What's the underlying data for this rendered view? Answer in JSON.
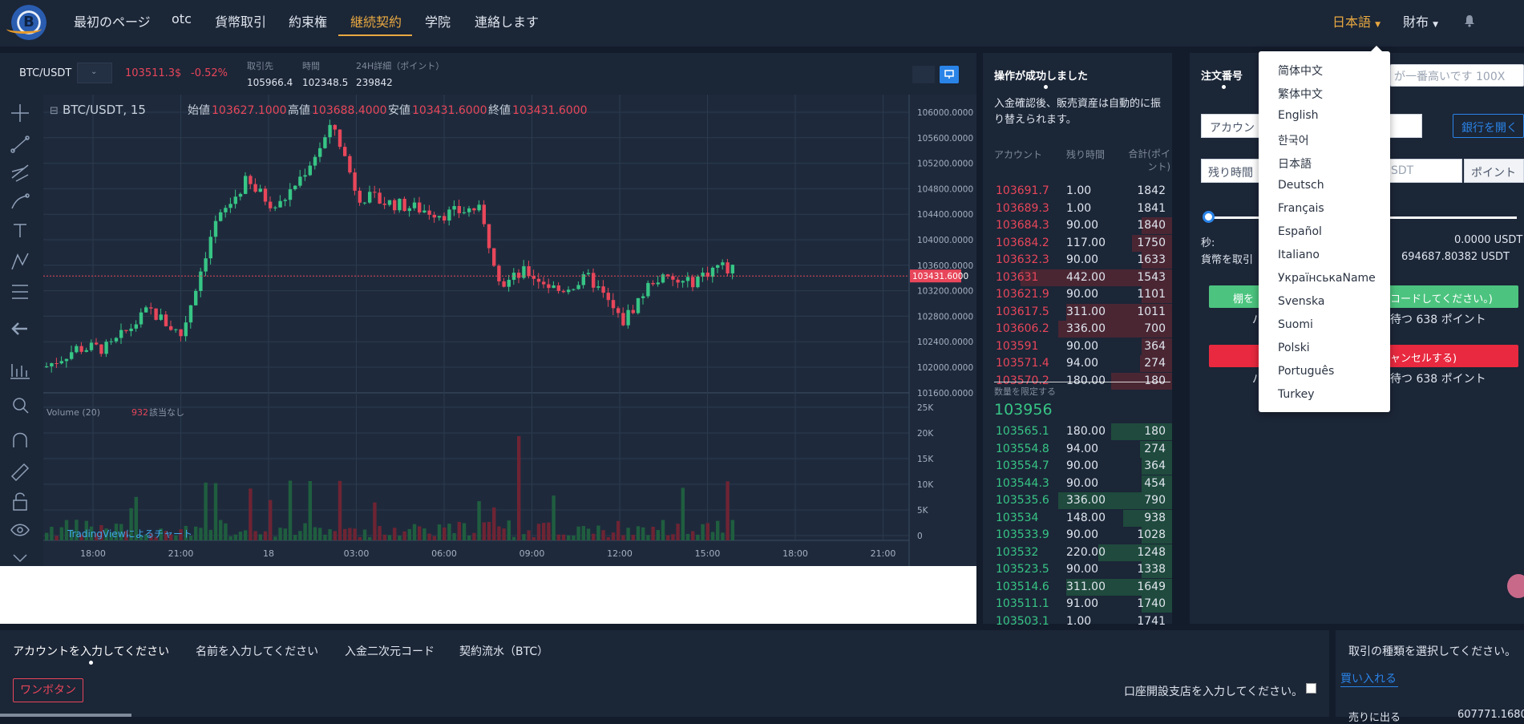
{
  "nav": {
    "items": [
      "最初のページ",
      "otc",
      "貨幣取引",
      "約束権",
      "継続契約",
      "学院",
      "連絡します"
    ],
    "language": "日本語",
    "assets": "財布"
  },
  "ticker": {
    "symbol": "BTC/USDT",
    "price": "103511.3$",
    "change": "-0.52%",
    "stats": [
      {
        "label": "取引先",
        "value": "105966.4"
      },
      {
        "label": "時間",
        "value": "102348.5"
      },
      {
        "label": "24H詳細（ポイント）",
        "value": "239842"
      }
    ]
  },
  "chart": {
    "legend_symbol": "BTC/USDT, 15",
    "ohlc": [
      {
        "label": "始値",
        "value": "103627.1000"
      },
      {
        "label": "高値",
        "value": "103688.4000"
      },
      {
        "label": "安値",
        "value": "103431.6000"
      },
      {
        "label": "終値",
        "value": "103431.6000"
      }
    ],
    "price_ticks": [
      "106000.0000",
      "105600.0000",
      "105200.0000",
      "104800.0000",
      "104400.0000",
      "104000.0000",
      "103600.0000",
      "103200.0000",
      "102800.0000",
      "102400.0000",
      "102000.0000",
      "101600.0000"
    ],
    "current_price_label": "103431.6000",
    "volume_label": "Volume (20)",
    "volume_value": "932",
    "volume_na": "該当なし",
    "volume_ticks": [
      "25K",
      "20K",
      "15K",
      "10K",
      "5K",
      "0"
    ],
    "time_ticks": [
      "18:00",
      "21:00",
      "18",
      "03:00",
      "06:00",
      "09:00",
      "12:00",
      "15:00",
      "18:00",
      "21:00"
    ],
    "watermark": "TradingViewによるチャート"
  },
  "orderbook": {
    "title": "操作が成功しました",
    "message": "入金確認後、販売資産は自動的に振り替えられます。",
    "headers": [
      "アカウント",
      "残り時間",
      "合計(ポイント)"
    ],
    "asks": [
      {
        "price": "103691.7",
        "amount": "1.00",
        "total": "1842",
        "depth": 0
      },
      {
        "price": "103689.3",
        "amount": "1.00",
        "total": "1841",
        "depth": 0
      },
      {
        "price": "103684.3",
        "amount": "90.00",
        "total": "1840",
        "depth": 0.16
      },
      {
        "price": "103684.2",
        "amount": "117.00",
        "total": "1750",
        "depth": 0.21
      },
      {
        "price": "103632.3",
        "amount": "90.00",
        "total": "1633",
        "depth": 0.16
      },
      {
        "price": "103631",
        "amount": "442.00",
        "total": "1543",
        "depth": 0.8
      },
      {
        "price": "103621.9",
        "amount": "90.00",
        "total": "1101",
        "depth": 0.16
      },
      {
        "price": "103617.5",
        "amount": "311.00",
        "total": "1011",
        "depth": 0.56
      },
      {
        "price": "103606.2",
        "amount": "336.00",
        "total": "700",
        "depth": 0.6
      },
      {
        "price": "103591",
        "amount": "90.00",
        "total": "364",
        "depth": 0.16
      },
      {
        "price": "103571.4",
        "amount": "94.00",
        "total": "274",
        "depth": 0.17
      },
      {
        "price": "103570.2",
        "amount": "180.00",
        "total": "180",
        "depth": 0.32
      }
    ],
    "mid_label": "数量を限定する",
    "mid_price": "103956",
    "bids": [
      {
        "price": "103565.1",
        "amount": "180.00",
        "total": "180",
        "depth": 0.32
      },
      {
        "price": "103554.8",
        "amount": "94.00",
        "total": "274",
        "depth": 0.17
      },
      {
        "price": "103554.7",
        "amount": "90.00",
        "total": "364",
        "depth": 0.16
      },
      {
        "price": "103544.3",
        "amount": "90.00",
        "total": "454",
        "depth": 0.16
      },
      {
        "price": "103535.6",
        "amount": "336.00",
        "total": "790",
        "depth": 0.6
      },
      {
        "price": "103534",
        "amount": "148.00",
        "total": "938",
        "depth": 0.26
      },
      {
        "price": "103533.9",
        "amount": "90.00",
        "total": "1028",
        "depth": 0.16
      },
      {
        "price": "103532",
        "amount": "220.00",
        "total": "1248",
        "depth": 0.39
      },
      {
        "price": "103523.5",
        "amount": "90.00",
        "total": "1338",
        "depth": 0.16
      },
      {
        "price": "103514.6",
        "amount": "311.00",
        "total": "1649",
        "depth": 0.56
      },
      {
        "price": "103511.1",
        "amount": "91.00",
        "total": "1740",
        "depth": 0.16
      },
      {
        "price": "103503.1",
        "amount": "1.00",
        "total": "1741",
        "depth": 0
      }
    ]
  },
  "order_form": {
    "tab": "注文番号",
    "leverage_text": "が一番高いです 100X",
    "account_label": "アカウン",
    "open_bank": "銀行を開く",
    "remaining_label": "残り時間",
    "unit_suffix": "SDT",
    "points_label": "ポイント",
    "slider_value": 0,
    "seconds_label": "秒:",
    "seconds_value": "0.0000 USDT",
    "currency_label": "貨幣を取引",
    "currency_value": "694687.80382 USDT",
    "buy_button": "棚を",
    "buy_button_tail": "コードしてください。)",
    "buy_note_prefix": "パ",
    "buy_note": "待つ 638 ポイント",
    "sell_button_tail": "ャンセルする)",
    "sell_note_prefix": "パ",
    "sell_note": "待つ 638 ポイント"
  },
  "language_menu": {
    "options": [
      "简体中文",
      "繁体中文",
      "English",
      "한국어",
      "日本語",
      "Deutsch",
      "Français",
      "Español",
      "Italiano",
      "УкраїнськаName",
      "Svenska",
      "Suomi",
      "Polski",
      "Português",
      "Turkey"
    ]
  },
  "bottom": {
    "tabs": [
      "アカウントを入力してください",
      "名前を入力してください",
      "入金二次元コード",
      "契約流水（BTC）"
    ],
    "one_click": "ワンボタン",
    "branch_label": "口座開設支店を入力してください。",
    "right_title": "取引の種類を選択してください。",
    "buy_in": "買い入れる",
    "partial_row": "売りに出る",
    "partial_value": "607771.1680"
  },
  "colors": {
    "up": "#37c585",
    "down": "#e8465a",
    "accent": "#e8a841",
    "blue": "#2a84e8"
  }
}
